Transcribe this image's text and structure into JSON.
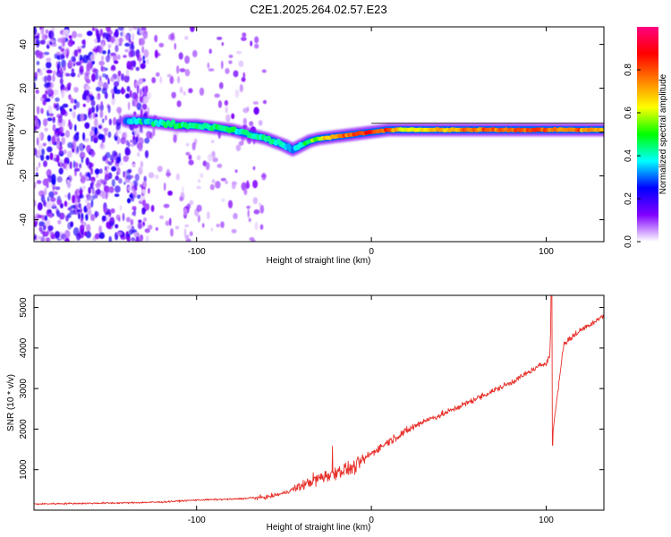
{
  "title": "C2E1.2025.264.02.57.E23",
  "top_panel": {
    "xlabel": "Height of straight line (km)",
    "ylabel": "Frequency (Hz)",
    "x_ticks": [
      -100,
      0,
      100
    ],
    "y_ticks": [
      -40,
      -20,
      0,
      20,
      40
    ],
    "colorbar": {
      "label": "Normalized spectral amplitude",
      "ticks": [
        "0.0",
        "0.2",
        "0.4",
        "0.6",
        "0.8"
      ],
      "range": [
        0,
        1
      ],
      "gradient": [
        "#ffffff",
        "#8000ff",
        "#0000ff",
        "#00ffff",
        "#00ff00",
        "#ffff00",
        "#ff8000",
        "#ff0000",
        "#ff0080"
      ]
    }
  },
  "chart_data": [
    {
      "type": "heatmap",
      "title": "C2E1.2025.264.02.57.E23",
      "xlabel": "Height of straight line (km)",
      "ylabel": "Frequency (Hz)",
      "xlim": [
        -193,
        133
      ],
      "ylim": [
        -50,
        48
      ],
      "signal_track": {
        "x": [
          -140,
          -130,
          -120,
          -110,
          -100,
          -90,
          -80,
          -70,
          -60,
          -50,
          -45,
          -40,
          -35,
          -30,
          -20,
          -10,
          0,
          10,
          20,
          40,
          60,
          80,
          90,
          100,
          110,
          120,
          133
        ],
        "frequency": [
          5,
          5,
          4,
          3,
          3,
          2,
          1,
          -1,
          -3,
          -6,
          -8,
          -6,
          -4,
          -3,
          -2,
          -1,
          0,
          1,
          1,
          1,
          1,
          1,
          1,
          1,
          1,
          1,
          1
        ],
        "amplitude": [
          0.35,
          0.4,
          0.4,
          0.45,
          0.45,
          0.45,
          0.45,
          0.4,
          0.4,
          0.4,
          0.35,
          0.4,
          0.5,
          0.6,
          0.75,
          0.8,
          0.85,
          0.8,
          0.6,
          0.7,
          0.75,
          0.8,
          0.8,
          0.8,
          0.75,
          0.75,
          0.7
        ]
      },
      "noise_region_x": [
        -193,
        -60
      ]
    },
    {
      "type": "line",
      "xlabel": "Height of straight line (km)",
      "ylabel": "SNR (10 * v/v)",
      "x_ticks": [
        -100,
        0,
        100
      ],
      "y_ticks": [
        1000,
        2000,
        3000,
        4000,
        5000
      ],
      "xlim": [
        -193,
        133
      ],
      "ylim": [
        0,
        5300
      ],
      "series": [
        {
          "name": "SNR",
          "color": "#e8302a",
          "x": [
            -193,
            -180,
            -160,
            -140,
            -120,
            -100,
            -80,
            -60,
            -50,
            -40,
            -30,
            -20,
            -10,
            0,
            10,
            20,
            30,
            40,
            50,
            60,
            70,
            80,
            90,
            100,
            102,
            103,
            104,
            110,
            120,
            133
          ],
          "y": [
            150,
            160,
            170,
            180,
            200,
            250,
            270,
            320,
            420,
            600,
            800,
            950,
            1050,
            1400,
            1700,
            1950,
            2200,
            2350,
            2550,
            2750,
            2950,
            3150,
            3400,
            3650,
            3800,
            4900,
            2000,
            4100,
            4450,
            4800
          ]
        }
      ]
    }
  ]
}
